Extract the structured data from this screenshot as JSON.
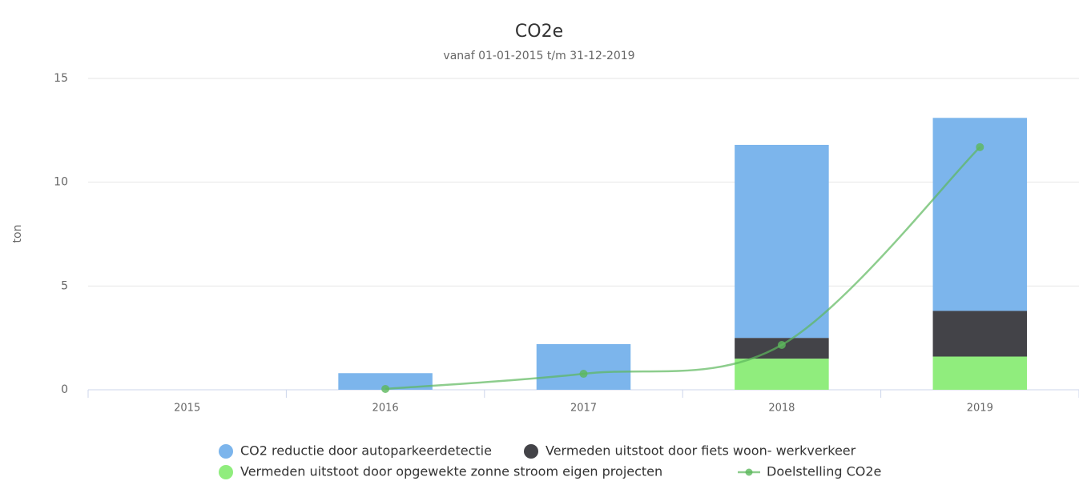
{
  "chart_data": {
    "type": "bar",
    "stacked": true,
    "title": "CO2e",
    "subtitle": "vanaf 01-01-2015 t/m 31-12-2019",
    "y_label": "ton",
    "categories": [
      "2015",
      "2016",
      "2017",
      "2018",
      "2019"
    ],
    "series": [
      {
        "name": "CO2 reductie door autoparkeerdetectie",
        "color": "#7cb5ec",
        "type": "bar",
        "values": [
          0,
          0.8,
          2.2,
          9.3,
          9.3
        ]
      },
      {
        "name": "Vermeden uitstoot door fiets woon- werkverkeer",
        "color": "#434348",
        "type": "bar",
        "values": [
          0,
          0,
          0,
          1.0,
          2.2
        ]
      },
      {
        "name": "Vermeden uitstoot door opgewekte zonne stroom eigen projecten",
        "color": "#90ed7d",
        "type": "bar",
        "values": [
          0,
          0,
          0,
          1.5,
          1.6
        ]
      },
      {
        "name": "Doelstelling CO2e",
        "color": "#5cb85c",
        "type": "line",
        "values": [
          null,
          0.04,
          0.77,
          2.16,
          11.69
        ]
      }
    ],
    "ylim": [
      0,
      15
    ],
    "yticks": [
      0,
      5,
      10,
      15
    ],
    "grid": true
  }
}
